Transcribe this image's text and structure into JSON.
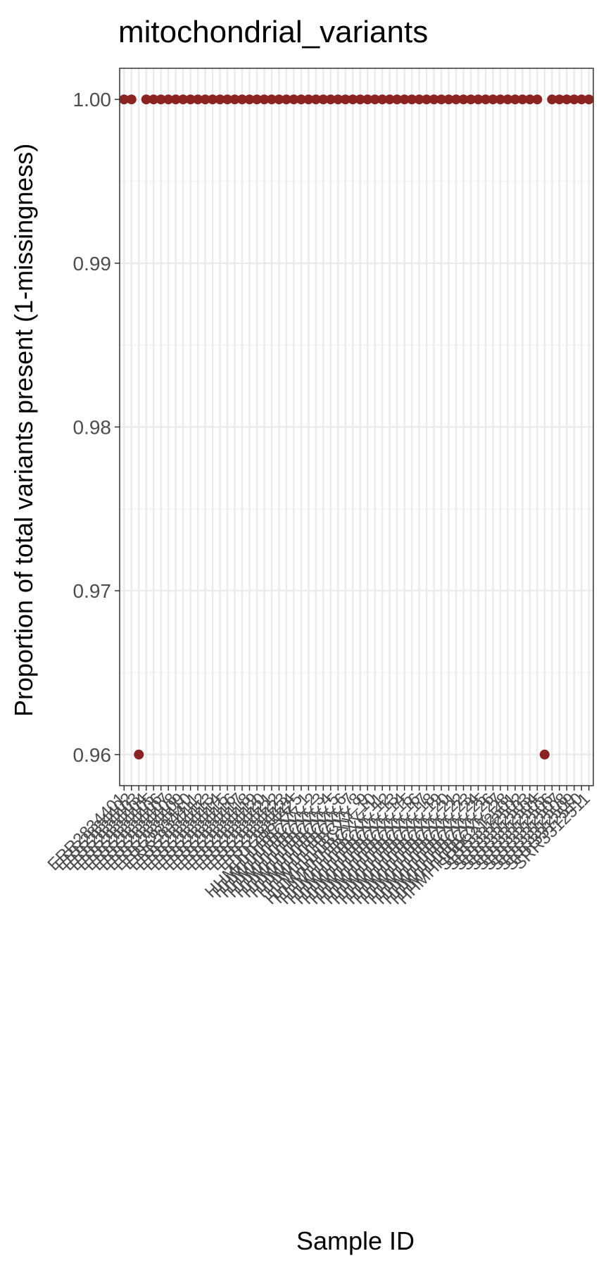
{
  "chart_data": {
    "type": "scatter",
    "title": "mitochondrial_variants",
    "xlabel": "Sample ID",
    "ylabel": "Proportion of total variants present (1-missingness)",
    "ylim": [
      0.9581,
      1.0019
    ],
    "yticks": [
      0.96,
      0.97,
      0.98,
      0.99,
      1.0
    ],
    "ytick_labels": [
      "0.96",
      "0.97",
      "0.98",
      "0.99",
      "1.00"
    ],
    "grid": true,
    "legend": "none",
    "point_color": "#8b2323",
    "categories": [
      "ERR2834401",
      "ERR2834402",
      "ERR2834403",
      "ERR2834404",
      "ERR2834405",
      "ERR2834406",
      "ERR2834407",
      "ERR2834408",
      "ERR2834409",
      "ERR2834410",
      "ERR2834411",
      "ERR2834412",
      "ERR2834413",
      "ERR2834414",
      "ERR2834415",
      "ERR2834416",
      "ERR2834417",
      "ERR2834418",
      "ERR2834419",
      "ERR2834420",
      "ERR2834421",
      "ERR2834422",
      "ERR2834423",
      "ERR2834424",
      "ERR2834425",
      "HHMHHHBCXY_1",
      "HHMHHHBCXY_2",
      "HHMHHHBCXY_3",
      "HHMHHHBCXY_4",
      "HHMHHHBCXY_5",
      "HHMHHHBCXY_6",
      "HHMHHHBCXY_7",
      "HHMHHHBCXY_8",
      "HHMHHHBCXY_9",
      "HHMHHHBCXY_10",
      "HHMHHHBCXY_11",
      "HHMHHHBCXY_12",
      "HHMHHHBCXY_13",
      "HHMHHHBCXY_14",
      "HHMHHHBCXY_15",
      "HHMHHHBCXY_16",
      "HHMHHHBCXY_17",
      "HHMHHHBCXY_18",
      "HHMHHHBCXY_19",
      "HHMHHHBCXY_20",
      "HHMHHHBCXY_21",
      "HHMHHHBCXY_22",
      "HHMHHHBCXY_23",
      "HHMHHHBCXY_24",
      "HHMHHHBCXY_25",
      "HHMHHHBCXY_26",
      "HHMHHHBCXY_27",
      "HHMHHHBCXY_28",
      "SRR3312501",
      "SRR3312502",
      "SRR3312503",
      "SRR3312504",
      "SRR3312505",
      "SRR3312506",
      "SRR3312507",
      "SRR3312508",
      "SRR3312509",
      "SRR3312510",
      "SRR3312511"
    ],
    "values": [
      1.0,
      1.0,
      0.96,
      1.0,
      1.0,
      1.0,
      1.0,
      1.0,
      1.0,
      1.0,
      1.0,
      1.0,
      1.0,
      1.0,
      1.0,
      1.0,
      1.0,
      1.0,
      1.0,
      1.0,
      1.0,
      1.0,
      1.0,
      1.0,
      1.0,
      1.0,
      1.0,
      1.0,
      1.0,
      1.0,
      1.0,
      1.0,
      1.0,
      1.0,
      1.0,
      1.0,
      1.0,
      1.0,
      1.0,
      1.0,
      1.0,
      1.0,
      1.0,
      1.0,
      1.0,
      1.0,
      1.0,
      1.0,
      1.0,
      1.0,
      1.0,
      1.0,
      1.0,
      1.0,
      1.0,
      1.0,
      1.0,
      0.96,
      1.0,
      1.0,
      1.0,
      1.0,
      1.0,
      1.0
    ]
  }
}
